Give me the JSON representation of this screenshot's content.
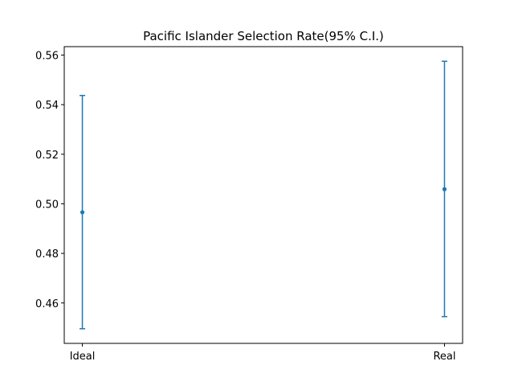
{
  "chart_data": {
    "type": "scatter",
    "title": "Pacific Islander Selection Rate(95% C.I.)",
    "xlabel": "",
    "ylabel": "",
    "categories": [
      "Ideal",
      "Real"
    ],
    "series": [
      {
        "points": [
          {
            "x": "Ideal",
            "y": 0.4966,
            "lower": 0.4496,
            "upper": 0.5437
          },
          {
            "x": "Real",
            "y": 0.5059,
            "lower": 0.4545,
            "upper": 0.5575
          }
        ]
      }
    ],
    "ylim": [
      0.4437,
      0.5634
    ],
    "yticks": [
      0.46,
      0.48,
      0.5,
      0.52,
      0.54,
      0.56
    ],
    "ytick_labels": [
      "0.46",
      "0.48",
      "0.50",
      "0.52",
      "0.54",
      "0.56"
    ],
    "grid": false,
    "legend": "none",
    "colors": {
      "series": "#1f77b4",
      "axes": "#000000"
    }
  }
}
